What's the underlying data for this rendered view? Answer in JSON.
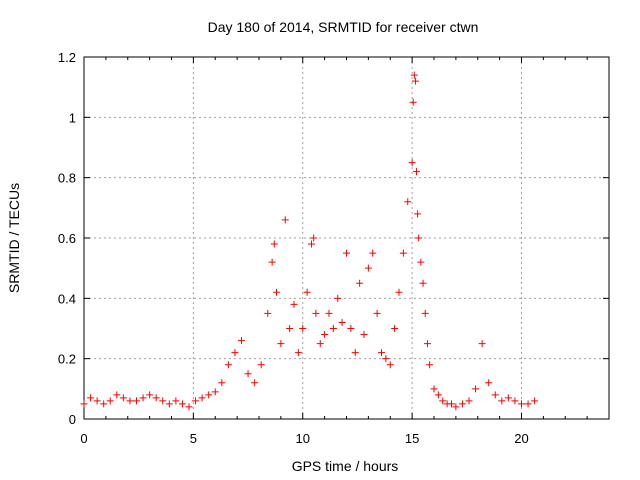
{
  "chart_data": {
    "type": "scatter",
    "title": "Day 180 of 2014, SRMTID for receiver ctwn",
    "xlabel": "GPS time / hours",
    "ylabel": "SRMTID / TECUs",
    "xlim": [
      0,
      24
    ],
    "ylim": [
      0,
      1.2
    ],
    "xticks": [
      0,
      5,
      10,
      15,
      20
    ],
    "xtick_labels": [
      "0",
      "5",
      "10",
      "15",
      "20"
    ],
    "yticks": [
      0,
      0.2,
      0.4,
      0.6,
      0.8,
      1.0,
      1.2
    ],
    "ytick_labels": [
      "0",
      "0.2",
      "0.4",
      "0.6",
      "0.8",
      "1",
      "1.2"
    ],
    "grid": true,
    "marker": "+",
    "color": "#ff0000",
    "series": [
      {
        "name": "SRMTID",
        "x": [
          0.0,
          0.3,
          0.6,
          0.9,
          1.2,
          1.5,
          1.8,
          2.1,
          2.4,
          2.7,
          3.0,
          3.3,
          3.6,
          3.9,
          4.2,
          4.5,
          4.8,
          5.1,
          5.4,
          5.7,
          6.0,
          6.3,
          6.6,
          6.9,
          7.2,
          7.5,
          7.8,
          8.1,
          8.4,
          8.6,
          8.7,
          8.8,
          9.0,
          9.2,
          9.4,
          9.6,
          9.8,
          10.0,
          10.2,
          10.4,
          10.5,
          10.6,
          10.8,
          11.0,
          11.2,
          11.4,
          11.6,
          11.8,
          12.0,
          12.2,
          12.4,
          12.6,
          12.8,
          13.0,
          13.2,
          13.4,
          13.6,
          13.8,
          14.0,
          14.2,
          14.4,
          14.6,
          14.8,
          15.0,
          15.05,
          15.1,
          15.15,
          15.2,
          15.25,
          15.3,
          15.4,
          15.5,
          15.6,
          15.7,
          15.8,
          16.0,
          16.2,
          16.4,
          16.6,
          16.8,
          17.0,
          17.3,
          17.6,
          17.9,
          18.2,
          18.5,
          18.8,
          19.1,
          19.4,
          19.7,
          20.0,
          20.3,
          20.6
        ],
        "y": [
          0.05,
          0.07,
          0.06,
          0.05,
          0.06,
          0.08,
          0.07,
          0.06,
          0.06,
          0.07,
          0.08,
          0.07,
          0.06,
          0.05,
          0.06,
          0.05,
          0.04,
          0.06,
          0.07,
          0.08,
          0.09,
          0.12,
          0.18,
          0.22,
          0.26,
          0.15,
          0.12,
          0.18,
          0.35,
          0.52,
          0.58,
          0.42,
          0.25,
          0.66,
          0.3,
          0.38,
          0.22,
          0.3,
          0.42,
          0.58,
          0.6,
          0.35,
          0.25,
          0.28,
          0.35,
          0.3,
          0.4,
          0.32,
          0.55,
          0.3,
          0.22,
          0.45,
          0.28,
          0.5,
          0.55,
          0.35,
          0.22,
          0.2,
          0.18,
          0.3,
          0.42,
          0.55,
          0.72,
          0.85,
          1.05,
          1.14,
          1.12,
          0.82,
          0.68,
          0.6,
          0.52,
          0.45,
          0.35,
          0.25,
          0.18,
          0.1,
          0.08,
          0.06,
          0.05,
          0.05,
          0.04,
          0.05,
          0.06,
          0.1,
          0.25,
          0.12,
          0.08,
          0.06,
          0.07,
          0.06,
          0.05,
          0.05,
          0.06
        ]
      }
    ]
  }
}
